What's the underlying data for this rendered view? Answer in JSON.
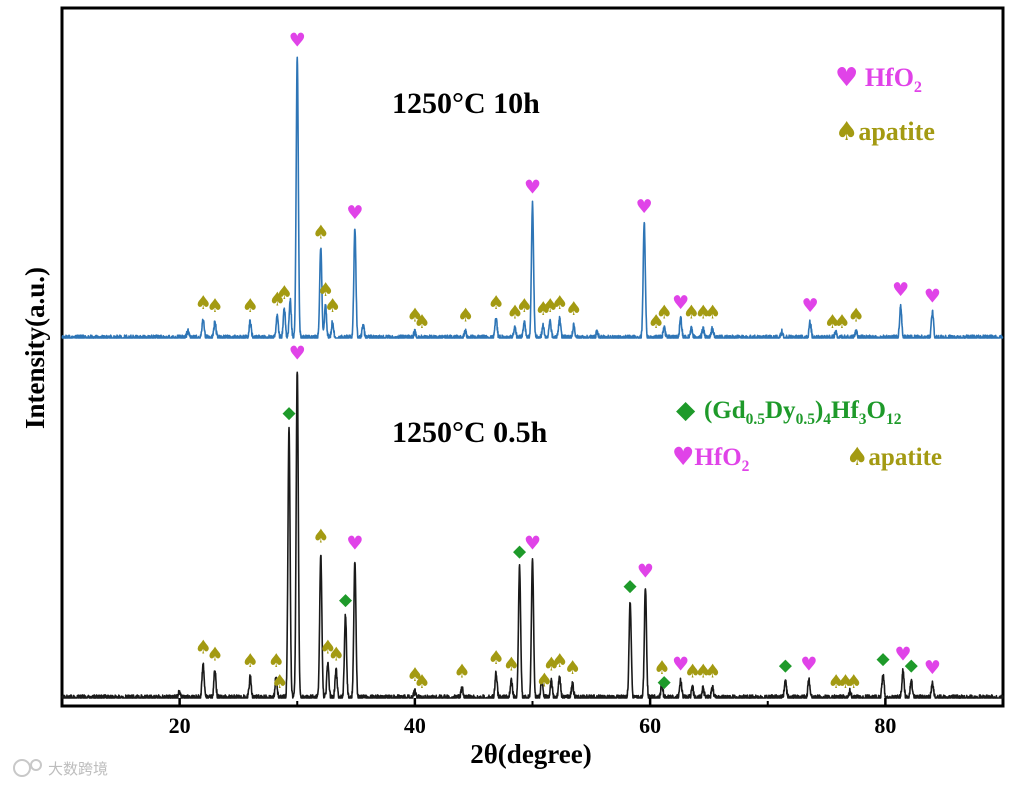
{
  "chart_data": {
    "type": "line",
    "title": "",
    "xlabel": "2θ(degree)",
    "ylabel": "Intensity(a.u.)",
    "xlim": [
      10,
      90
    ],
    "x_ticks": [
      "20",
      "40",
      "60",
      "80"
    ],
    "x_tick_values": [
      20,
      40,
      60,
      80
    ],
    "colors": {
      "hfo2": "#e043e8",
      "apatite": "#a39a12",
      "garnet": "#1e9a2a",
      "top_series": "#2e75b6",
      "bottom_series": "#1a1a1a"
    },
    "symbols": {
      "hfo2": "♥",
      "apatite": "♠",
      "garnet": "◆"
    },
    "series": [
      {
        "name": "1250°C 10h",
        "label": "1250°C  10h",
        "color": "#2e75b6",
        "baseline": 0.12,
        "peaks": [
          {
            "x": 20.7,
            "h": 0.02
          },
          {
            "x": 22.0,
            "h": 0.06
          },
          {
            "x": 23.0,
            "h": 0.05
          },
          {
            "x": 26.0,
            "h": 0.05
          },
          {
            "x": 28.3,
            "h": 0.07
          },
          {
            "x": 28.9,
            "h": 0.09
          },
          {
            "x": 29.4,
            "h": 0.12
          },
          {
            "x": 30.0,
            "h": 0.88
          },
          {
            "x": 32.0,
            "h": 0.28
          },
          {
            "x": 32.4,
            "h": 0.1
          },
          {
            "x": 33.0,
            "h": 0.05
          },
          {
            "x": 34.9,
            "h": 0.34
          },
          {
            "x": 35.6,
            "h": 0.04
          },
          {
            "x": 40.0,
            "h": 0.02
          },
          {
            "x": 44.3,
            "h": 0.02
          },
          {
            "x": 46.9,
            "h": 0.06
          },
          {
            "x": 48.5,
            "h": 0.03
          },
          {
            "x": 49.3,
            "h": 0.05
          },
          {
            "x": 50.0,
            "h": 0.42
          },
          {
            "x": 50.9,
            "h": 0.04
          },
          {
            "x": 51.5,
            "h": 0.05
          },
          {
            "x": 52.3,
            "h": 0.06
          },
          {
            "x": 53.5,
            "h": 0.04
          },
          {
            "x": 55.5,
            "h": 0.02
          },
          {
            "x": 59.5,
            "h": 0.36
          },
          {
            "x": 61.2,
            "h": 0.03
          },
          {
            "x": 62.6,
            "h": 0.06
          },
          {
            "x": 63.5,
            "h": 0.03
          },
          {
            "x": 64.5,
            "h": 0.03
          },
          {
            "x": 65.3,
            "h": 0.03
          },
          {
            "x": 71.2,
            "h": 0.02
          },
          {
            "x": 73.6,
            "h": 0.05
          },
          {
            "x": 75.8,
            "h": 0.02
          },
          {
            "x": 77.5,
            "h": 0.02
          },
          {
            "x": 81.3,
            "h": 0.1
          },
          {
            "x": 84.0,
            "h": 0.08
          }
        ]
      },
      {
        "name": "1250°C 0.5h",
        "label": "1250°C  0.5h",
        "color": "#1a1a1a",
        "baseline": 0.12,
        "peaks": [
          {
            "x": 20.0,
            "h": 0.02
          },
          {
            "x": 22.0,
            "h": 0.1
          },
          {
            "x": 23.0,
            "h": 0.08
          },
          {
            "x": 26.0,
            "h": 0.06
          },
          {
            "x": 28.2,
            "h": 0.06
          },
          {
            "x": 29.3,
            "h": 0.78
          },
          {
            "x": 30.0,
            "h": 0.95
          },
          {
            "x": 32.0,
            "h": 0.42
          },
          {
            "x": 32.6,
            "h": 0.1
          },
          {
            "x": 33.3,
            "h": 0.08
          },
          {
            "x": 34.1,
            "h": 0.24
          },
          {
            "x": 34.9,
            "h": 0.4
          },
          {
            "x": 40.0,
            "h": 0.02
          },
          {
            "x": 44.0,
            "h": 0.03
          },
          {
            "x": 46.9,
            "h": 0.07
          },
          {
            "x": 48.2,
            "h": 0.05
          },
          {
            "x": 48.9,
            "h": 0.38
          },
          {
            "x": 50.0,
            "h": 0.4
          },
          {
            "x": 50.8,
            "h": 0.05
          },
          {
            "x": 51.6,
            "h": 0.05
          },
          {
            "x": 52.3,
            "h": 0.06
          },
          {
            "x": 53.4,
            "h": 0.04
          },
          {
            "x": 58.3,
            "h": 0.28
          },
          {
            "x": 59.6,
            "h": 0.32
          },
          {
            "x": 61.0,
            "h": 0.04
          },
          {
            "x": 62.6,
            "h": 0.05
          },
          {
            "x": 63.6,
            "h": 0.03
          },
          {
            "x": 64.5,
            "h": 0.03
          },
          {
            "x": 65.3,
            "h": 0.03
          },
          {
            "x": 71.5,
            "h": 0.05
          },
          {
            "x": 73.5,
            "h": 0.05
          },
          {
            "x": 77.0,
            "h": 0.02
          },
          {
            "x": 79.8,
            "h": 0.07
          },
          {
            "x": 81.5,
            "h": 0.08
          },
          {
            "x": 82.2,
            "h": 0.05
          },
          {
            "x": 84.0,
            "h": 0.04
          }
        ]
      }
    ],
    "annotations": [
      {
        "panel": 0,
        "phase": "hfo2",
        "x": [
          30.0,
          34.9,
          50.0,
          59.5,
          62.6,
          73.6,
          81.3,
          84.0
        ]
      },
      {
        "panel": 0,
        "phase": "apatite",
        "x": [
          22.0,
          23.0,
          26.0,
          28.3,
          28.9,
          32.0,
          32.4,
          33.0,
          40.0,
          40.6,
          44.3,
          46.9,
          48.5,
          49.3,
          50.9,
          51.5,
          52.3,
          53.5,
          60.5,
          61.2,
          63.5,
          64.5,
          65.3,
          75.5,
          76.3,
          77.5
        ]
      },
      {
        "panel": 1,
        "phase": "hfo2",
        "x": [
          30.0,
          34.9,
          50.0,
          59.6,
          62.6,
          73.5,
          81.5,
          84.0
        ]
      },
      {
        "panel": 1,
        "phase": "apatite",
        "x": [
          22.0,
          23.0,
          26.0,
          28.2,
          28.5,
          32.0,
          32.6,
          33.3,
          40.0,
          40.6,
          44.0,
          46.9,
          48.2,
          51.0,
          51.6,
          52.3,
          53.4,
          61.0,
          63.6,
          64.5,
          65.3,
          75.8,
          76.6,
          77.3
        ]
      },
      {
        "panel": 1,
        "phase": "garnet",
        "x": [
          29.3,
          34.1,
          48.9,
          58.3,
          61.2,
          71.5,
          79.8,
          82.2
        ]
      }
    ],
    "legends": [
      {
        "panel": 0,
        "position": "top-right",
        "entries": [
          {
            "phase": "hfo2",
            "symbol": "♥",
            "text": "HfO",
            "sub": "2"
          },
          {
            "phase": "apatite",
            "symbol": "♠",
            "text": "apatite",
            "sub": ""
          }
        ]
      },
      {
        "panel": 1,
        "position": "top-right",
        "garnet": {
          "symbol": "◆",
          "parts": [
            [
              "(Gd",
              "0.5"
            ],
            [
              "Dy",
              "0.5"
            ],
            [
              ")",
              "4"
            ],
            [
              "Hf",
              "3"
            ],
            [
              "O",
              "12"
            ]
          ]
        },
        "hfo2": {
          "symbol": "♥",
          "text": "HfO",
          "sub": "2"
        },
        "apatite": {
          "symbol": "♠",
          "text": "apatite"
        }
      }
    ]
  },
  "watermark": "大数跨境"
}
